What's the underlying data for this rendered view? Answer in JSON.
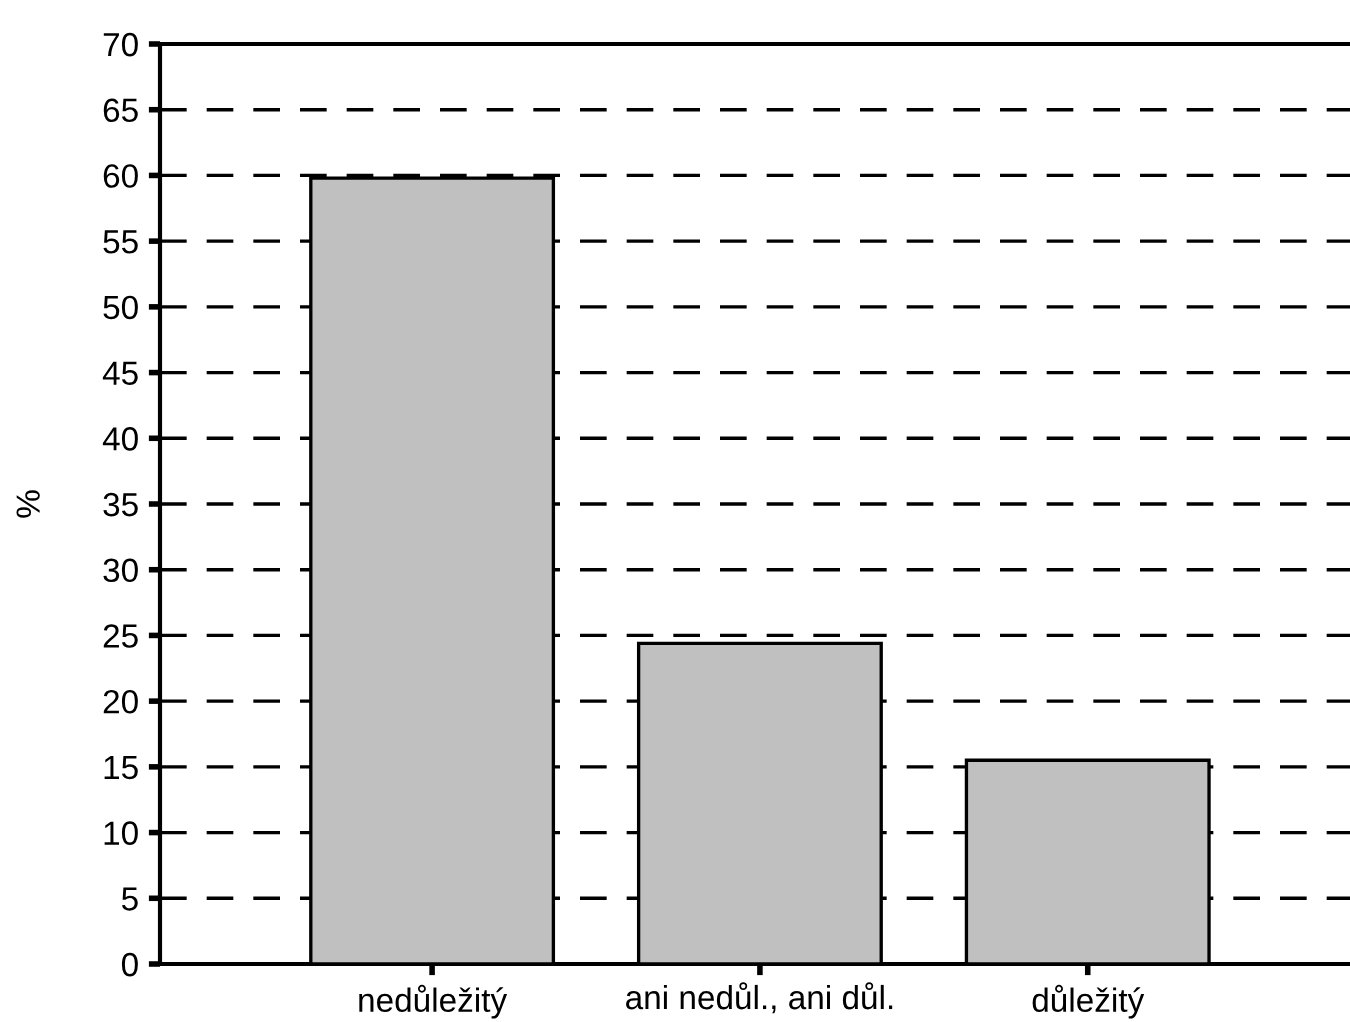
{
  "chart_data": {
    "type": "bar",
    "ylabel": "%",
    "categories": [
      "nedůležitý",
      "ani nedůl., ani důl.",
      "důležitý"
    ],
    "values": [
      59.8,
      24.4,
      15.5
    ],
    "color": "#c0c0c0",
    "ylim": [
      0,
      70
    ],
    "yticks": [
      0,
      5,
      10,
      15,
      20,
      25,
      30,
      35,
      40,
      45,
      50,
      55,
      60,
      65,
      70
    ],
    "grid": "y",
    "line_style": "dashed"
  }
}
